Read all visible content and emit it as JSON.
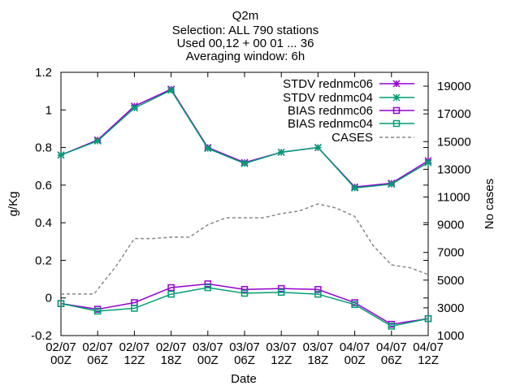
{
  "chart_data": {
    "type": "line",
    "title_lines": [
      "Q2m",
      "Selection: ALL    790 stations",
      "Used 00,12 + 00 01 ... 36",
      "Averaging window:  6h"
    ],
    "xlabel": "Date",
    "ylabel": "g/Kg",
    "y2label": "No cases",
    "categories": [
      [
        "02/07",
        "00Z"
      ],
      [
        "02/07",
        "06Z"
      ],
      [
        "02/07",
        "12Z"
      ],
      [
        "02/07",
        "18Z"
      ],
      [
        "03/07",
        "00Z"
      ],
      [
        "03/07",
        "06Z"
      ],
      [
        "03/07",
        "12Z"
      ],
      [
        "03/07",
        "18Z"
      ],
      [
        "04/07",
        "00Z"
      ],
      [
        "04/07",
        "06Z"
      ],
      [
        "04/07",
        "12Z"
      ]
    ],
    "x": [
      0,
      1,
      2,
      3,
      4,
      5,
      6,
      7,
      8,
      9,
      10
    ],
    "ylim": [
      -0.2,
      1.2
    ],
    "yticks": [
      "-0.2",
      "0",
      "0.2",
      "0.4",
      "0.6",
      "0.8",
      "1",
      "1.2"
    ],
    "y2lim": [
      1000,
      20000
    ],
    "y2ticks": [
      "1000",
      "3000",
      "5000",
      "7000",
      "9000",
      "11000",
      "13000",
      "15000",
      "17000",
      "19000"
    ],
    "series": [
      {
        "name": "STDV rednmc06",
        "axis": "y1",
        "color": "#9400d3",
        "marker": "star",
        "dash": false,
        "x": [
          0,
          1,
          2,
          3,
          4,
          5,
          6,
          7,
          8,
          9,
          10
        ],
        "values": [
          0.76,
          0.84,
          1.02,
          1.11,
          0.8,
          0.72,
          0.775,
          0.8,
          0.59,
          0.61,
          0.73
        ]
      },
      {
        "name": "STDV rednmc04",
        "axis": "y1",
        "color": "#009e73",
        "marker": "star",
        "dash": false,
        "x": [
          0,
          1,
          2,
          3,
          4,
          5,
          6,
          7,
          8,
          9,
          10
        ],
        "values": [
          0.76,
          0.835,
          1.01,
          1.105,
          0.795,
          0.715,
          0.775,
          0.8,
          0.585,
          0.605,
          0.72
        ]
      },
      {
        "name": "BIAS rednmc06",
        "axis": "y1",
        "color": "#9400d3",
        "marker": "square",
        "dash": false,
        "x": [
          0,
          1,
          2,
          3,
          4,
          5,
          6,
          7,
          8,
          9,
          10
        ],
        "values": [
          -0.03,
          -0.06,
          -0.025,
          0.055,
          0.075,
          0.045,
          0.05,
          0.045,
          -0.025,
          -0.14,
          -0.11
        ]
      },
      {
        "name": "BIAS rednmc04",
        "axis": "y1",
        "color": "#009e73",
        "marker": "square",
        "dash": false,
        "x": [
          0,
          1,
          2,
          3,
          4,
          5,
          6,
          7,
          8,
          9,
          10
        ],
        "values": [
          -0.03,
          -0.07,
          -0.055,
          0.02,
          0.055,
          0.025,
          0.03,
          0.02,
          -0.035,
          -0.15,
          -0.11
        ]
      },
      {
        "name": "CASES",
        "axis": "y2",
        "color": "#888888",
        "marker": "none",
        "dash": true,
        "x": [
          0,
          0.5,
          0.9,
          1.5,
          2.0,
          2.5,
          3.0,
          3.5,
          4.0,
          4.5,
          5.0,
          5.5,
          6.0,
          6.5,
          7.0,
          7.5,
          8.0,
          8.5,
          9.0,
          9.5,
          10.0
        ],
        "values": [
          4000,
          4000,
          4000,
          6000,
          8000,
          8000,
          8100,
          8100,
          9000,
          9500,
          9500,
          9500,
          9800,
          10000,
          10500,
          10200,
          9600,
          7500,
          6100,
          5900,
          5400
        ]
      }
    ],
    "legend_position": "top-right",
    "grid": false
  }
}
